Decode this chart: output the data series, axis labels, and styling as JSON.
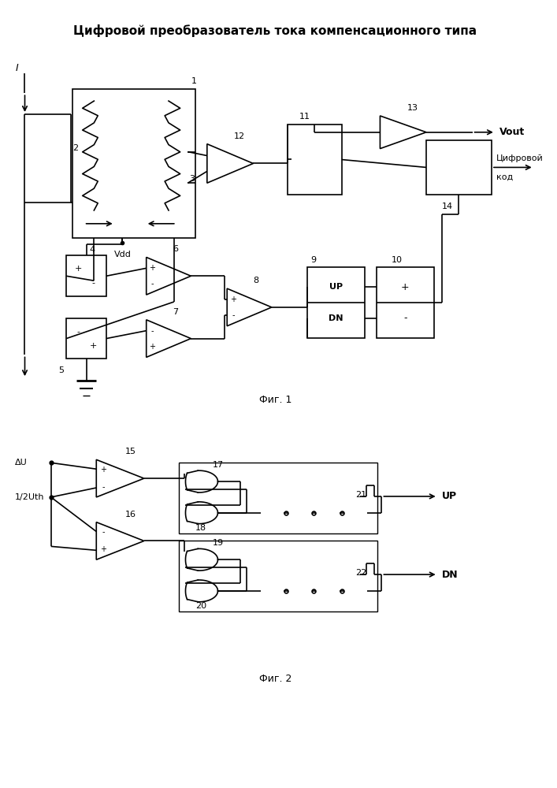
{
  "title": "Цифровой преобразователь тока компенсационного типа",
  "fig1_label": "Фиг. 1",
  "fig2_label": "Фиг. 2",
  "bg_color": "#ffffff",
  "line_color": "#000000",
  "font_size_title": 11,
  "font_size_label": 9,
  "font_size_num": 8
}
